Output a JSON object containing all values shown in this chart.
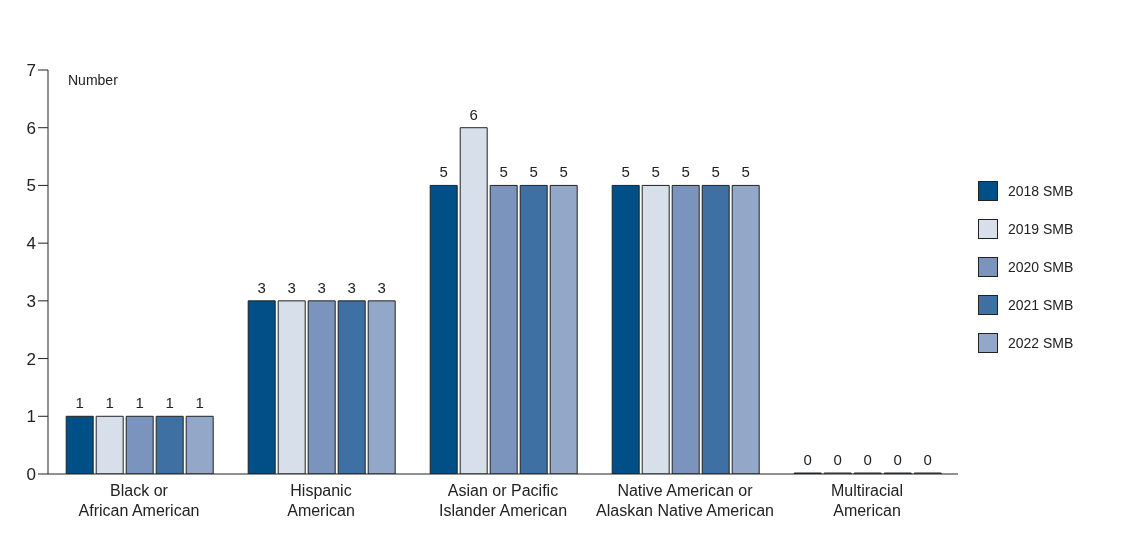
{
  "chart_data": {
    "type": "bar",
    "ylabel": "Number",
    "categories": [
      "Black or\nAfrican American",
      "Hispanic\nAmerican",
      "Asian or Pacific\nIslander American",
      "Native American or\nAlaskan Native American",
      "Multiracial\nAmerican"
    ],
    "series": [
      {
        "name": "2018 SMB",
        "color": "#004f87",
        "values": [
          1,
          3,
          5,
          5,
          0
        ]
      },
      {
        "name": "2019 SMB",
        "color": "#d6dfea",
        "values": [
          1,
          3,
          6,
          5,
          0
        ]
      },
      {
        "name": "2020 SMB",
        "color": "#7b94bd",
        "values": [
          1,
          3,
          5,
          5,
          0
        ]
      },
      {
        "name": "2021 SMB",
        "color": "#3f70a3",
        "values": [
          1,
          3,
          5,
          5,
          0
        ]
      },
      {
        "name": "2022 SMB",
        "color": "#93a7c9",
        "values": [
          1,
          3,
          5,
          5,
          0
        ]
      }
    ],
    "ylim": [
      0,
      7
    ],
    "yticks": [
      0,
      1,
      2,
      3,
      4,
      5,
      6,
      7
    ],
    "grid": false,
    "legend": "right",
    "data_labels": true
  }
}
